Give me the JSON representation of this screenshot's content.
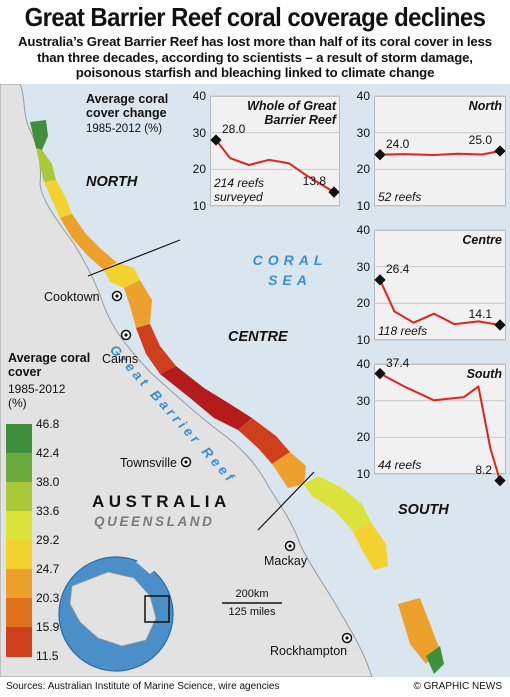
{
  "title": "Great Barrier Reef coral coverage declines",
  "subtitle": "Australia’s Great Barrier Reef has lost more than half of its coral cover in less than three decades, according to scientists – a result of storm damage, poisonous starfish and bleaching linked to climate change",
  "map": {
    "regions": [
      "NORTH",
      "CENTRE",
      "SOUTH"
    ],
    "sea_label": "CORAL SEA",
    "reef_label": "Great Barrier Reef",
    "country": "AUSTRALIA",
    "state": "QUEENSLAND",
    "cities": [
      "Cooktown",
      "Cairns",
      "Townsville",
      "Mackay",
      "Rockhampton"
    ],
    "scale": {
      "km": "200km",
      "miles": "125 miles"
    }
  },
  "legend": {
    "title": "Average coral cover",
    "years": "1985-2012",
    "unit": "(%)",
    "values": [
      "46.8",
      "42.4",
      "38.0",
      "33.6",
      "29.2",
      "24.7",
      "20.3",
      "15.9",
      "11.5"
    ],
    "colors": [
      "#3f8f3b",
      "#6cac3f",
      "#a9c93a",
      "#dbe23a",
      "#f3d12f",
      "#eda12c",
      "#e0711f",
      "#cf3f1c",
      "#b41b1b"
    ]
  },
  "chart_header": {
    "title": "Average coral cover change",
    "years": "1985-2012 (%)"
  },
  "chart_data": [
    {
      "type": "line",
      "name": "Whole of Great Barrier Reef",
      "ylim": [
        10,
        40
      ],
      "yticks": [
        "40",
        "30",
        "20",
        "10"
      ],
      "x": [
        1985,
        2012
      ],
      "start": 28.0,
      "end": 13.8,
      "start_label": "28.0",
      "end_label": "13.8",
      "footnote": "214 reefs surveyed"
    },
    {
      "type": "line",
      "name": "North",
      "ylim": [
        10,
        40
      ],
      "yticks": [
        "40",
        "30",
        "20",
        "10"
      ],
      "x": [
        1985,
        2012
      ],
      "start": 24.0,
      "end": 25.0,
      "start_label": "24.0",
      "end_label": "25.0",
      "footnote": "52 reefs"
    },
    {
      "type": "line",
      "name": "Centre",
      "ylim": [
        10,
        40
      ],
      "yticks": [
        "40",
        "30",
        "20",
        "10"
      ],
      "x": [
        1985,
        2012
      ],
      "start": 26.4,
      "end": 14.1,
      "start_label": "26.4",
      "end_label": "14.1",
      "footnote": "118 reefs"
    },
    {
      "type": "line",
      "name": "South",
      "ylim": [
        10,
        40
      ],
      "yticks": [
        "40",
        "30",
        "20",
        "10"
      ],
      "x": [
        1985,
        2012
      ],
      "start": 37.4,
      "end": 8.2,
      "start_label": "37.4",
      "end_label": "8.2",
      "footnote": "44 reefs"
    }
  ],
  "footer": {
    "sources": "Sources: Australian Institute of Marine Science, wire agencies",
    "credit": "© GRAPHIC NEWS"
  }
}
